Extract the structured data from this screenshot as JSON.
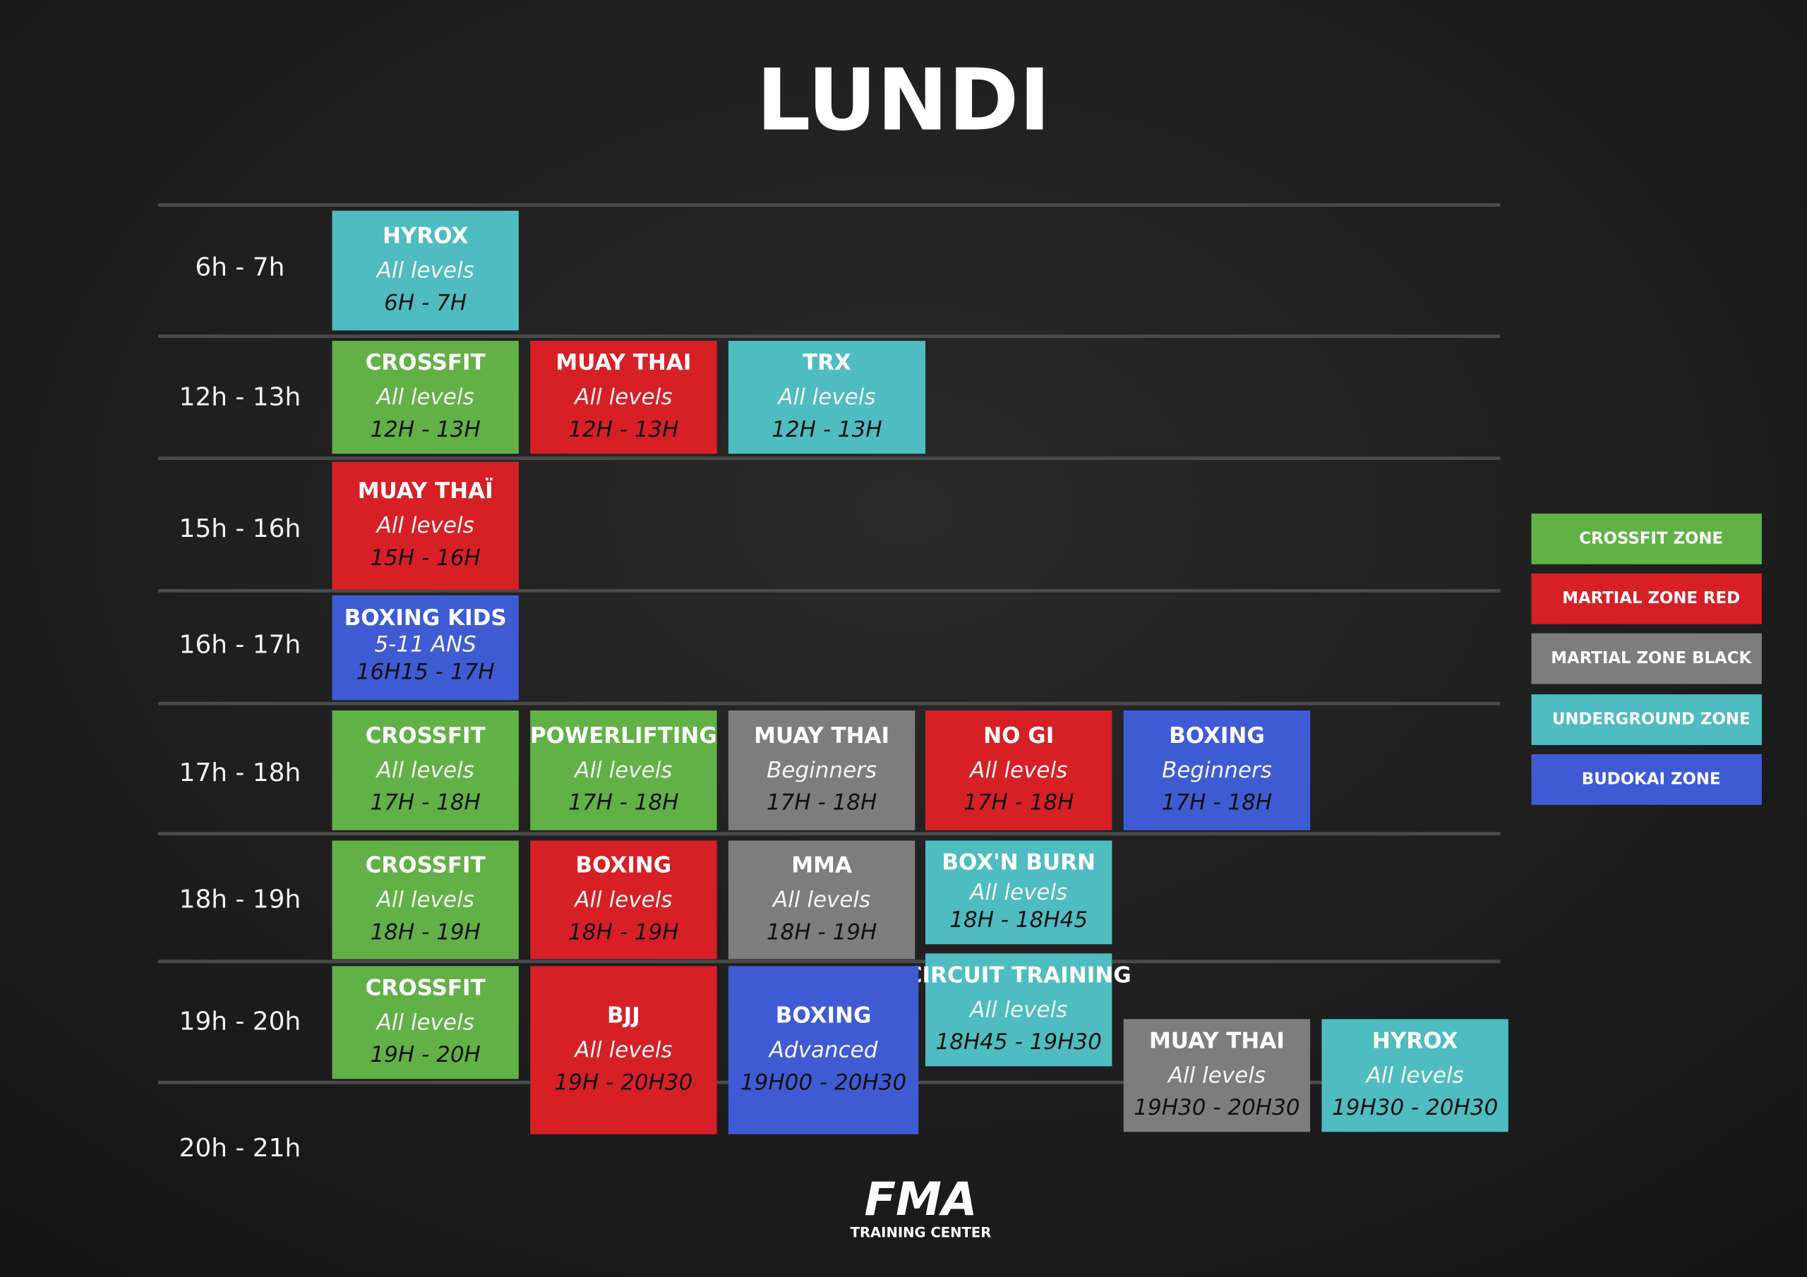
{
  "title": "LUNDI",
  "time_slots": [
    "6h - 7h",
    "12h - 13h",
    "15h - 16h",
    "16h - 17h",
    "17h - 18h",
    "18h - 19h",
    "19h - 20h",
    "20h - 21h"
  ],
  "classes": [
    {
      "name": "HYROX",
      "level": "All levels",
      "time": "6H - 7H",
      "color": "#4ebcc0"
    },
    {
      "name": "CROSSFIT",
      "level": "All levels",
      "time": "12H - 13H",
      "color": "#62b146"
    },
    {
      "name": "MUAY THAI",
      "level": "All levels",
      "time": "12H - 13H",
      "color": "#d71f26"
    },
    {
      "name": "TRX",
      "level": "All levels",
      "time": "12H - 13H",
      "color": "#4ebcc0"
    },
    {
      "name": "MUAY THAÏ",
      "level": "All levels",
      "time": "15H - 16H",
      "color": "#d71f26"
    },
    {
      "name": "BOXING KIDS",
      "level": "5-11 ANS",
      "time": "16H15 - 17H",
      "color": "#3f5bd4"
    },
    {
      "name": "CROSSFIT",
      "level": "All levels",
      "time": "17H - 18H",
      "color": "#62b146"
    },
    {
      "name": "POWERLIFTING",
      "level": "All levels",
      "time": "17H - 18H",
      "color": "#62b146"
    },
    {
      "name": "MUAY THAI",
      "level": "Beginners",
      "time": "17H - 18H",
      "color": "#7d7d7d"
    },
    {
      "name": "NO GI",
      "level": "All levels",
      "time": "17H - 18H",
      "color": "#d71f26"
    },
    {
      "name": "BOXING",
      "level": "Beginners",
      "time": "17H - 18H",
      "color": "#3f5bd4"
    },
    {
      "name": "CROSSFIT",
      "level": "All levels",
      "time": "18H - 19H",
      "color": "#62b146"
    },
    {
      "name": "BOXING",
      "level": "All levels",
      "time": "18H - 19H",
      "color": "#d71f26"
    },
    {
      "name": "MMA",
      "level": "All levels",
      "time": "18H - 19H",
      "color": "#7d7d7d"
    },
    {
      "name": "BOX'N BURN",
      "level": "All levels",
      "time": "18H - 18H45",
      "color": "#4ebcc0"
    },
    {
      "name": "CIRCUIT TRAINING",
      "level": "All levels",
      "time": "18H45 - 19H30",
      "color": "#4ebcc0"
    },
    {
      "name": "CROSSFIT",
      "level": "All levels",
      "time": "19H - 20H",
      "color": "#62b146"
    },
    {
      "name": "BJJ",
      "level": "All levels",
      "time": "19H - 20H30",
      "color": "#d71f26"
    },
    {
      "name": "BOXING",
      "level": "Advanced",
      "time": "19H00 - 20H30",
      "color": "#3f5bd4"
    },
    {
      "name": "MUAY THAI",
      "level": "All levels",
      "time": "19H30 - 20H30",
      "color": "#7d7d7d"
    },
    {
      "name": "HYROX",
      "level": "All levels",
      "time": "19H30 - 20H30",
      "color": "#4ebcc0"
    }
  ],
  "legend": [
    {
      "label": "CROSSFIT ZONE",
      "color": "#62b146"
    },
    {
      "label": "MARTIAL ZONE RED",
      "color": "#d71f26"
    },
    {
      "label": "MARTIAL ZONE BLACK",
      "color": "#7d7d7d"
    },
    {
      "label": "UNDERGROUND ZONE",
      "color": "#4ebcc0"
    },
    {
      "label": "BUDOKAI ZONE",
      "color": "#3f5bd4"
    }
  ],
  "logo": {
    "mark": "FMA",
    "subtitle": "TRAINING CENTER"
  }
}
